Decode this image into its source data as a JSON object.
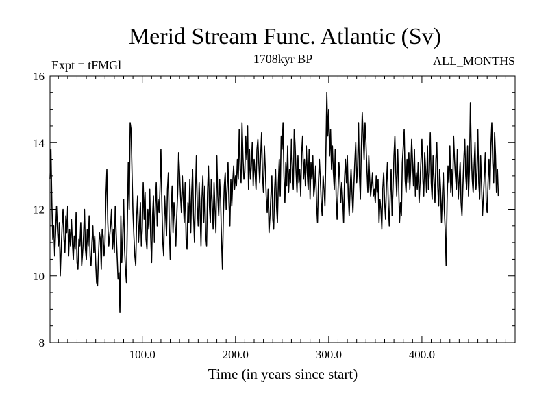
{
  "chart_data": {
    "type": "line",
    "title": "Merid Stream Func. Atlantic (Sv)",
    "subtitle_left": "Expt = tFMGl",
    "subtitle_center": "1708kyr BP",
    "subtitle_right": "ALL_MONTHS",
    "xlabel": "Time (in years since start)",
    "ylabel": "",
    "xlim": [
      1,
      500
    ],
    "ylim": [
      8,
      16
    ],
    "x_ticks": [
      100,
      200,
      300,
      400
    ],
    "x_tick_labels": [
      "100.0",
      "200.0",
      "300.0",
      "400.0"
    ],
    "y_ticks": [
      8,
      10,
      12,
      14,
      16
    ],
    "y_tick_labels": [
      "8",
      "10",
      "12",
      "14",
      "16"
    ],
    "grid": false,
    "series": [
      {
        "name": "Merid Stream Func. Atlantic",
        "color": "#000000",
        "x_start": 1,
        "x_step": 1,
        "values": [
          12.9,
          13.8,
          12.2,
          11.1,
          11.5,
          10.6,
          11.3,
          12.1,
          11.4,
          10.9,
          11.6,
          10.0,
          10.8,
          11.5,
          12.0,
          11.1,
          10.7,
          11.8,
          11.3,
          12.1,
          10.6,
          11.4,
          10.9,
          11.7,
          11.0,
          10.5,
          11.2,
          10.8,
          11.9,
          10.4,
          10.2,
          11.1,
          10.9,
          11.6,
          10.3,
          10.7,
          11.2,
          12.0,
          10.8,
          10.5,
          11.4,
          10.9,
          11.8,
          10.6,
          10.3,
          11.0,
          11.5,
          10.7,
          11.2,
          10.4,
          9.8,
          9.7,
          10.6,
          11.3,
          11.1,
          10.2,
          11.4,
          11.2,
          10.6,
          11.0,
          12.4,
          13.2,
          11.6,
          10.9,
          11.2,
          11.5,
          12.0,
          10.8,
          11.4,
          10.7,
          12.1,
          11.3,
          10.6,
          9.9,
          10.1,
          8.9,
          11.8,
          10.4,
          11.2,
          12.3,
          10.8,
          10.2,
          9.8,
          11.6,
          13.4,
          12.0,
          14.6,
          14.4,
          13.1,
          11.9,
          11.2,
          10.6,
          10.3,
          11.8,
          12.4,
          11.0,
          11.6,
          12.2,
          10.9,
          11.4,
          12.8,
          11.7,
          12.5,
          11.1,
          10.8,
          12.0,
          11.4,
          12.6,
          11.2,
          10.4,
          11.8,
          12.4,
          11.0,
          12.1,
          12.8,
          11.5,
          12.3,
          11.9,
          12.6,
          13.8,
          12.2,
          11.0,
          10.6,
          12.4,
          11.8,
          11.2,
          12.6,
          13.1,
          11.4,
          10.5,
          11.9,
          12.7,
          11.3,
          12.2,
          11.7,
          10.9,
          11.8,
          12.5,
          13.7,
          13.1,
          12.4,
          11.9,
          13.0,
          12.3,
          11.6,
          12.8,
          11.1,
          10.8,
          12.2,
          11.6,
          12.9,
          11.3,
          12.5,
          13.2,
          11.8,
          11.0,
          12.4,
          13.6,
          12.1,
          11.5,
          12.8,
          11.9,
          10.9,
          12.3,
          13.0,
          11.6,
          12.7,
          11.2,
          10.9,
          12.5,
          13.3,
          12.1,
          11.6,
          12.9,
          12.2,
          11.4,
          12.8,
          12.0,
          11.3,
          13.6,
          12.4,
          11.8,
          12.9,
          12.3,
          11.1,
          10.2,
          11.8,
          12.7,
          13.1,
          12.0,
          12.6,
          13.4,
          12.2,
          11.5,
          12.9,
          12.1,
          12.8,
          13.3,
          12.6,
          13.0,
          12.7,
          13.5,
          12.9,
          14.4,
          13.2,
          12.8,
          14.6,
          13.6,
          12.9,
          13.1,
          14.2,
          13.5,
          14.5,
          12.6,
          13.8,
          12.9,
          13.3,
          14.0,
          12.7,
          13.5,
          13.1,
          12.6,
          13.8,
          14.1,
          13.4,
          12.8,
          13.6,
          14.3,
          13.0,
          12.5,
          13.9,
          13.2,
          12.4,
          11.9,
          12.6,
          11.3,
          11.8,
          12.4,
          13.0,
          11.7,
          11.4,
          12.6,
          13.2,
          12.1,
          11.6,
          12.8,
          13.5,
          12.4,
          14.2,
          13.8,
          14.6,
          13.0,
          12.2,
          13.4,
          12.7,
          13.9,
          12.5,
          13.2,
          12.8,
          14.1,
          13.3,
          12.6,
          14.4,
          13.9,
          13.1,
          12.5,
          13.6,
          12.8,
          13.2,
          12.4,
          13.7,
          14.2,
          12.9,
          13.5,
          12.7,
          13.9,
          13.1,
          12.6,
          13.8,
          12.3,
          13.4,
          12.9,
          13.6,
          12.4,
          12.7,
          13.3,
          12.1,
          11.6,
          12.8,
          13.5,
          12.9,
          12.2,
          11.8,
          13.0,
          12.6,
          12.1,
          13.7,
          15.5,
          14.2,
          15.0,
          13.6,
          14.4,
          13.2,
          13.9,
          13.1,
          12.6,
          13.8,
          12.4,
          11.7,
          12.5,
          13.4,
          12.9,
          12.2,
          12.8,
          12.3,
          11.6,
          12.9,
          13.5,
          12.8,
          13.6,
          12.4,
          11.8,
          12.6,
          13.2,
          12.5,
          11.9,
          12.7,
          13.4,
          14.0,
          12.8,
          13.3,
          14.6,
          13.0,
          12.3,
          13.8,
          14.9,
          14.2,
          13.5,
          14.6,
          14.0,
          13.2,
          12.5,
          13.6,
          12.9,
          12.4,
          12.7,
          13.1,
          12.4,
          12.6,
          12.2,
          13.0,
          12.5,
          12.9,
          11.6,
          12.3,
          12.0,
          11.4,
          12.6,
          13.1,
          12.2,
          11.7,
          12.8,
          13.4,
          12.1,
          11.5,
          12.4,
          13.2,
          11.8,
          12.6,
          13.6,
          14.2,
          13.1,
          12.4,
          13.8,
          12.8,
          11.6,
          12.2,
          11.8,
          13.4,
          13.9,
          14.4,
          12.9,
          12.5,
          13.5,
          12.8,
          13.7,
          12.6,
          13.2,
          14.1,
          13.4,
          12.7,
          13.8,
          12.4,
          13.1,
          12.6,
          13.4,
          12.2,
          12.8,
          13.5,
          14.1,
          12.9,
          12.4,
          13.7,
          13.2,
          12.5,
          13.9,
          12.6,
          13.1,
          14.3,
          12.8,
          12.3,
          13.6,
          12.9,
          12.2,
          13.5,
          14.0,
          12.7,
          12.1,
          13.2,
          12.6,
          11.6,
          12.4,
          13.1,
          12.0,
          11.4,
          10.3,
          12.2,
          13.3,
          12.8,
          13.9,
          12.5,
          13.2,
          12.4,
          14.2,
          13.5,
          13.0,
          12.6,
          13.8,
          12.3,
          12.9,
          13.4,
          12.2,
          11.8,
          12.7,
          13.5,
          14.1,
          13.0,
          12.6,
          13.9,
          12.4,
          13.2,
          15.2,
          13.7,
          12.9,
          12.5,
          13.3,
          14.0,
          12.6,
          13.1,
          14.4,
          12.8,
          12.3,
          13.6,
          12.7,
          11.8,
          12.4,
          13.0,
          13.7,
          12.2,
          11.9,
          12.8,
          13.5,
          12.6,
          13.9,
          14.6,
          13.4,
          12.8,
          14.3,
          13.6,
          12.5,
          13.2,
          12.4
        ]
      }
    ]
  }
}
